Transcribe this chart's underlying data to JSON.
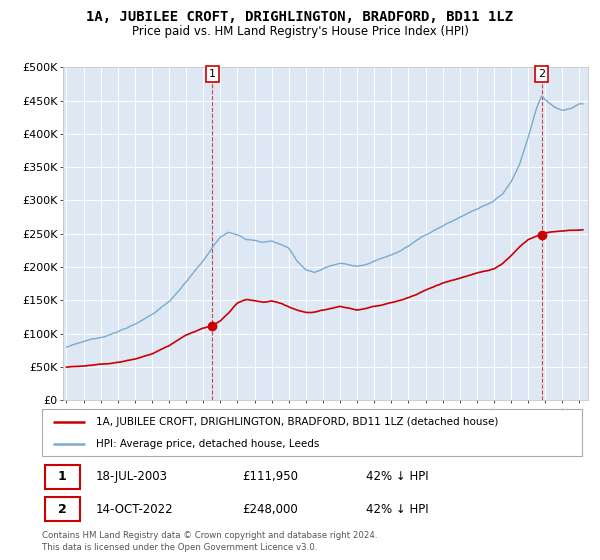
{
  "title": "1A, JUBILEE CROFT, DRIGHLINGTON, BRADFORD, BD11 1LZ",
  "subtitle": "Price paid vs. HM Land Registry's House Price Index (HPI)",
  "legend_line1": "1A, JUBILEE CROFT, DRIGHLINGTON, BRADFORD, BD11 1LZ (detached house)",
  "legend_line2": "HPI: Average price, detached house, Leeds",
  "sale1_date": "18-JUL-2003",
  "sale1_price": "£111,950",
  "sale1_hpi": "42% ↓ HPI",
  "sale2_date": "14-OCT-2022",
  "sale2_price": "£248,000",
  "sale2_hpi": "42% ↓ HPI",
  "footnote": "Contains HM Land Registry data © Crown copyright and database right 2024.\nThis data is licensed under the Open Government Licence v3.0.",
  "sale1_year": 2003.54,
  "sale2_year": 2022.79,
  "sale1_value": 111950,
  "sale2_value": 248000,
  "background_color": "#dde8f4",
  "red_color": "#cc0000",
  "blue_color": "#7aabcf",
  "grid_color": "#ffffff",
  "marker_edge": "#cc0000",
  "ylim": [
    0,
    500000
  ],
  "xlim_start": 1994.8,
  "xlim_end": 2025.5
}
